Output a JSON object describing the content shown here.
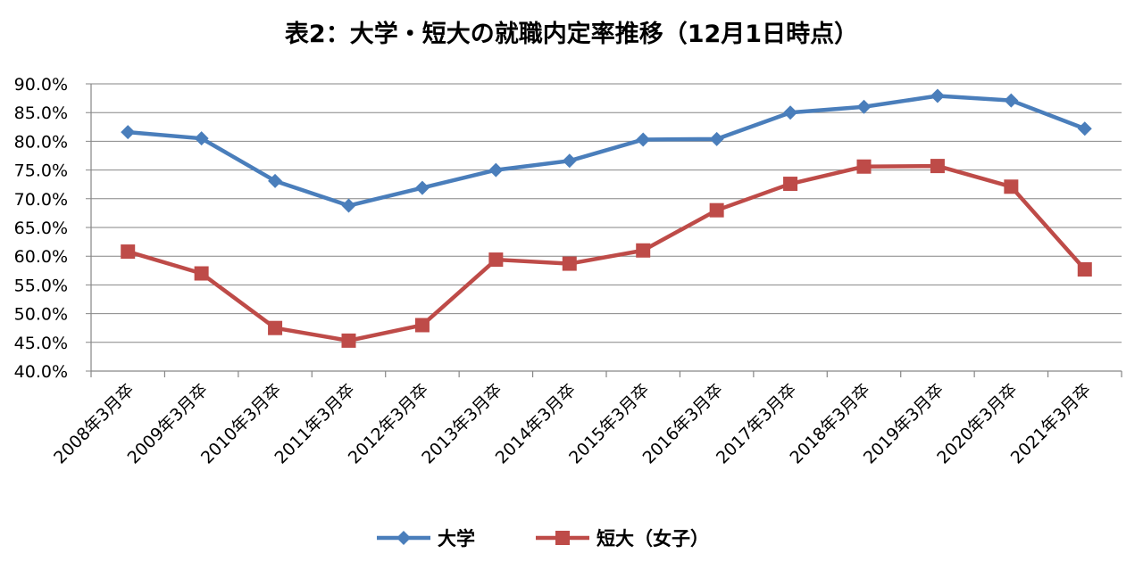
{
  "chart_data": {
    "type": "line",
    "title": "表2：大学・短大の就職内定率推移（12月1日時点）",
    "categories": [
      "2008年3月卒",
      "2009年3月卒",
      "2010年3月卒",
      "2011年3月卒",
      "2012年3月卒",
      "2013年3月卒",
      "2014年3月卒",
      "2015年3月卒",
      "2016年3月卒",
      "2017年3月卒",
      "2018年3月卒",
      "2019年3月卒",
      "2020年3月卒",
      "2021年3月卒"
    ],
    "series": [
      {
        "name": "大学",
        "color": "#4a7ebb",
        "marker": "diamond",
        "values": [
          81.6,
          80.5,
          73.1,
          68.8,
          71.9,
          75.0,
          76.6,
          80.3,
          80.4,
          85.0,
          86.0,
          87.9,
          87.1,
          82.2
        ]
      },
      {
        "name": "短大（女子）",
        "color": "#be4b48",
        "marker": "square",
        "values": [
          60.8,
          57.0,
          47.5,
          45.3,
          48.0,
          59.4,
          58.7,
          61.0,
          68.0,
          72.6,
          75.6,
          75.7,
          72.1,
          57.7
        ]
      }
    ],
    "ylim": [
      40,
      90
    ],
    "yticks": [
      "90.0%",
      "85.0%",
      "80.0%",
      "75.0%",
      "70.0%",
      "65.0%",
      "60.0%",
      "55.0%",
      "50.0%",
      "45.0%",
      "40.0%"
    ],
    "grid": true,
    "legend": "bottom"
  }
}
